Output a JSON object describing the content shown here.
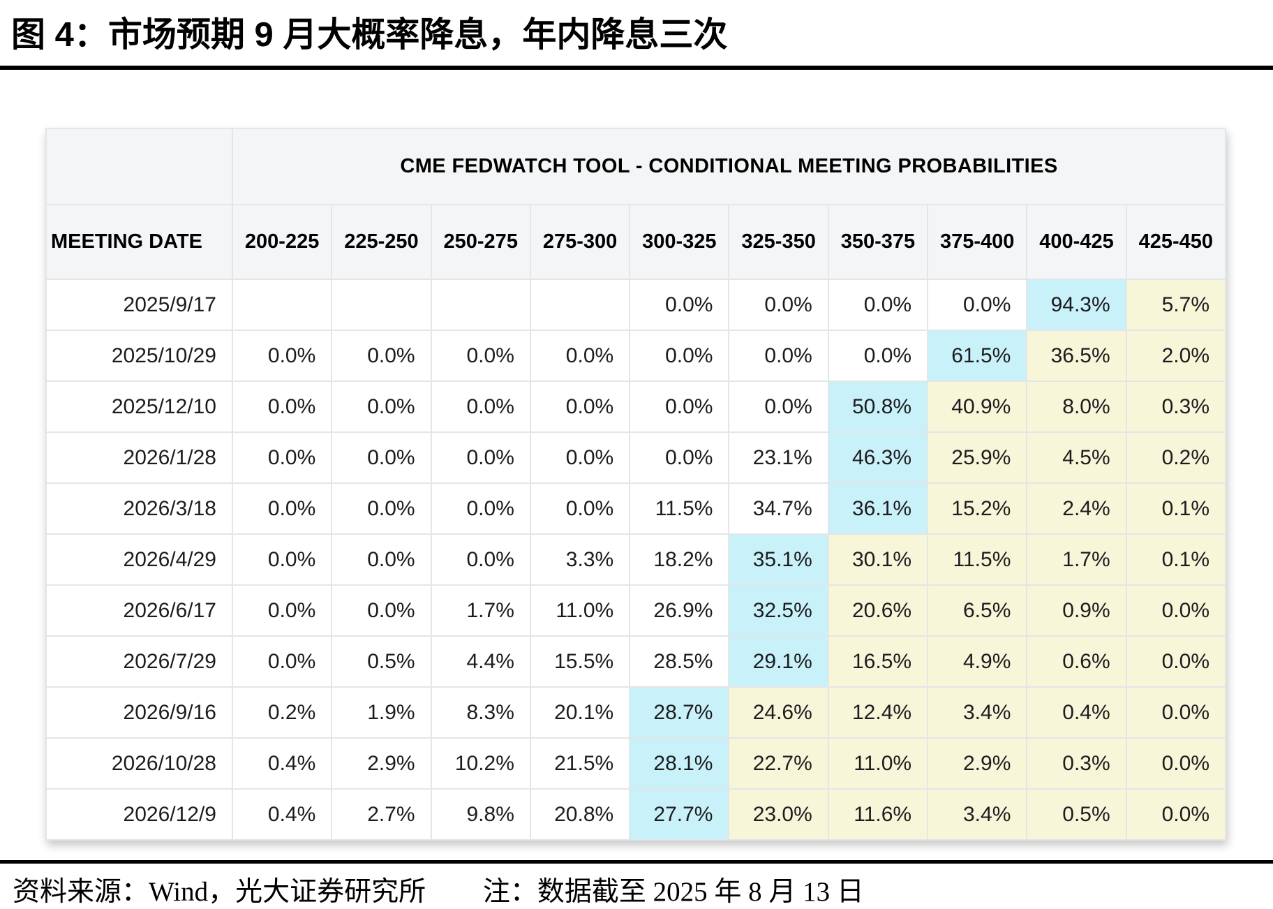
{
  "figure": {
    "title": "图 4：市场预期 9 月大概率降息，年内降息三次"
  },
  "chart_data": {
    "type": "table",
    "title": "CME FEDWATCH TOOL - CONDITIONAL MEETING PROBABILITIES",
    "row_header": "MEETING DATE",
    "columns": [
      "200-225",
      "225-250",
      "250-275",
      "275-300",
      "300-325",
      "325-350",
      "350-375",
      "375-400",
      "400-425",
      "425-450"
    ],
    "rows": [
      {
        "date": "2025/9/17",
        "values": [
          "",
          "",
          "",
          "",
          "0.0%",
          "0.0%",
          "0.0%",
          "0.0%",
          "94.3%",
          "5.7%"
        ],
        "highlight_index": 8
      },
      {
        "date": "2025/10/29",
        "values": [
          "0.0%",
          "0.0%",
          "0.0%",
          "0.0%",
          "0.0%",
          "0.0%",
          "0.0%",
          "61.5%",
          "36.5%",
          "2.0%"
        ],
        "highlight_index": 7
      },
      {
        "date": "2025/12/10",
        "values": [
          "0.0%",
          "0.0%",
          "0.0%",
          "0.0%",
          "0.0%",
          "0.0%",
          "50.8%",
          "40.9%",
          "8.0%",
          "0.3%"
        ],
        "highlight_index": 6
      },
      {
        "date": "2026/1/28",
        "values": [
          "0.0%",
          "0.0%",
          "0.0%",
          "0.0%",
          "0.0%",
          "23.1%",
          "46.3%",
          "25.9%",
          "4.5%",
          "0.2%"
        ],
        "highlight_index": 6
      },
      {
        "date": "2026/3/18",
        "values": [
          "0.0%",
          "0.0%",
          "0.0%",
          "0.0%",
          "11.5%",
          "34.7%",
          "36.1%",
          "15.2%",
          "2.4%",
          "0.1%"
        ],
        "highlight_index": 6
      },
      {
        "date": "2026/4/29",
        "values": [
          "0.0%",
          "0.0%",
          "0.0%",
          "3.3%",
          "18.2%",
          "35.1%",
          "30.1%",
          "11.5%",
          "1.7%",
          "0.1%"
        ],
        "highlight_index": 5
      },
      {
        "date": "2026/6/17",
        "values": [
          "0.0%",
          "0.0%",
          "1.7%",
          "11.0%",
          "26.9%",
          "32.5%",
          "20.6%",
          "6.5%",
          "0.9%",
          "0.0%"
        ],
        "highlight_index": 5
      },
      {
        "date": "2026/7/29",
        "values": [
          "0.0%",
          "0.5%",
          "4.4%",
          "15.5%",
          "28.5%",
          "29.1%",
          "16.5%",
          "4.9%",
          "0.6%",
          "0.0%"
        ],
        "highlight_index": 5
      },
      {
        "date": "2026/9/16",
        "values": [
          "0.2%",
          "1.9%",
          "8.3%",
          "20.1%",
          "28.7%",
          "24.6%",
          "12.4%",
          "3.4%",
          "0.4%",
          "0.0%"
        ],
        "highlight_index": 4
      },
      {
        "date": "2026/10/28",
        "values": [
          "0.4%",
          "2.9%",
          "10.2%",
          "21.5%",
          "28.1%",
          "22.7%",
          "11.0%",
          "2.9%",
          "0.3%",
          "0.0%"
        ],
        "highlight_index": 4
      },
      {
        "date": "2026/12/9",
        "values": [
          "0.4%",
          "2.7%",
          "9.8%",
          "20.8%",
          "27.7%",
          "23.0%",
          "11.6%",
          "3.4%",
          "0.5%",
          "0.0%"
        ],
        "highlight_index": 4
      }
    ],
    "legend_note": "cyan = highest-probability rate range for that meeting; yellow = ranges above it"
  },
  "colors": {
    "highlight_blue": "#c9f1fa",
    "highlight_yellow": "#f7f6d9",
    "header_bg": "#f4f5f6",
    "rule_black": "#000000"
  },
  "footer": {
    "source": "资料来源：Wind，光大证券研究所",
    "note": "注：数据截至 2025 年 8 月 13 日"
  }
}
